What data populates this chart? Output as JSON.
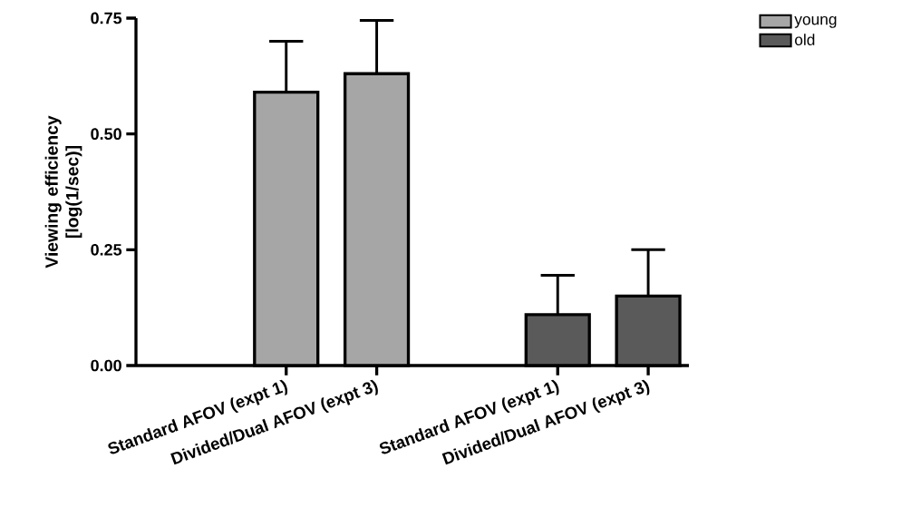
{
  "chart_data": {
    "type": "bar",
    "ylabel": "Viewing efficiency [log(1/sec)]",
    "categories": [
      "Standard AFOV  (expt 1)",
      "Divided/Dual AFOV (expt 3)",
      null,
      "Standard AFOV  (expt 1)",
      "Divided/Dual AFOV (expt 3)"
    ],
    "series": [
      {
        "name": "young",
        "color": "#a6a6a6",
        "values": [
          0.59,
          0.63,
          null,
          null,
          null
        ],
        "errors": [
          [
            0.59,
            0.7
          ],
          [
            0.63,
            0.745
          ],
          null,
          null,
          null
        ]
      },
      {
        "name": "old",
        "color": "#5a5a5a",
        "values": [
          null,
          null,
          null,
          0.11,
          0.15
        ],
        "errors": [
          null,
          null,
          null,
          [
            0.11,
            0.195
          ],
          [
            0.15,
            0.25
          ]
        ]
      }
    ],
    "ylim": [
      0,
      0.75
    ],
    "yticks": [
      {
        "value": 0,
        "label": "0.00"
      },
      {
        "value": 0.25,
        "label": "0.25"
      },
      {
        "value": 0.5,
        "label": "0.50"
      },
      {
        "value": 0.75,
        "label": "0.75"
      }
    ],
    "legend": "top right"
  }
}
